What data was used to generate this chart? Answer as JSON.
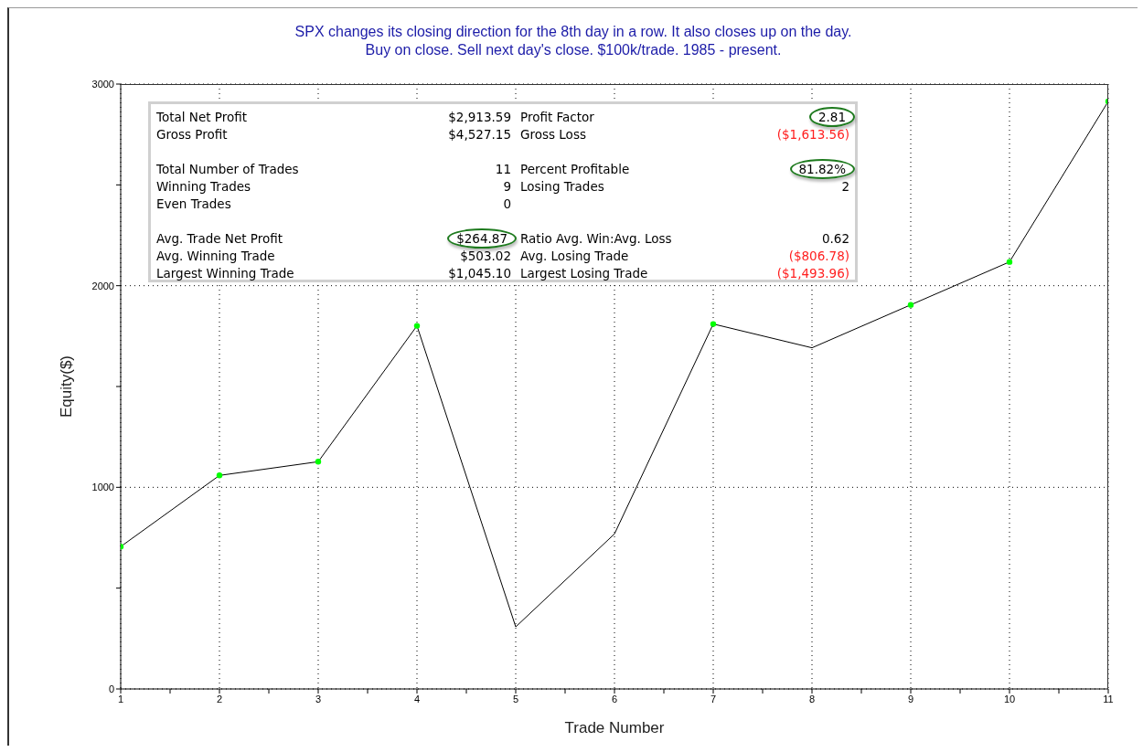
{
  "chart_data": {
    "type": "line",
    "title": "SPX changes its closing direction for the 8th day in a row. It also closes up on the day.",
    "subtitle": "Buy on close. Sell next day's close. $100k/trade. 1985 - present.",
    "xlabel": "Trade Number",
    "ylabel": "Equity($)",
    "x": [
      1,
      2,
      3,
      4,
      5,
      6,
      7,
      8,
      9,
      10,
      11
    ],
    "series": [
      {
        "type": "line",
        "color": "#000000",
        "marker": "none",
        "values": [
          706,
          1059,
          1127,
          1801,
          308,
          769,
          1810,
          1692,
          1905,
          2118,
          2914
        ]
      },
      {
        "type": "scatter",
        "color": "#00ff00",
        "marker": "circle",
        "values": [
          706,
          1059,
          1127,
          1801,
          null,
          null,
          1810,
          null,
          1905,
          2118,
          2914
        ]
      }
    ],
    "xlim": [
      1,
      11
    ],
    "xticks": [
      1,
      {
        "value": 1.5,
        "label": null
      },
      2,
      {
        "value": 2.5,
        "label": null
      },
      3,
      {
        "value": 3.5,
        "label": null
      },
      4,
      {
        "value": 4.5,
        "label": null
      },
      5,
      {
        "value": 5.5,
        "label": null
      },
      6,
      {
        "value": 6.5,
        "label": null
      },
      7,
      {
        "value": 7.5,
        "label": null
      },
      8,
      {
        "value": 8.5,
        "label": null
      },
      9,
      {
        "value": 9.5,
        "label": null
      },
      10,
      {
        "value": 10.5,
        "label": null
      },
      11
    ],
    "ylim": [
      0,
      3000
    ],
    "yticks": [
      0,
      {
        "value": 500,
        "label": null
      },
      1000,
      {
        "value": 1500,
        "label": null
      },
      2000,
      {
        "value": 2500,
        "label": null
      },
      3000
    ],
    "grid": true,
    "annotations": [
      "Total Net Profit",
      "$2,913.59",
      "Profit Factor",
      "2.81",
      "Gross Profit",
      "$4,527.15",
      "Gross Loss",
      "($1,613.56)",
      "Total Number of Trades",
      "11",
      "Percent Profitable",
      "81.82%",
      "Winning Trades",
      "9",
      "Losing Trades",
      "2",
      "Even Trades",
      "0",
      "Avg. Trade Net Profit",
      "$264.87",
      "Ratio Avg. Win:Avg. Loss",
      "0.62",
      "Avg. Winning Trade",
      "$503.02",
      "Avg. Losing Trade",
      "($806.78)",
      "Largest Winning Trade",
      "$1,045.10",
      "Largest Losing Trade",
      "($1,493.96)"
    ]
  }
}
